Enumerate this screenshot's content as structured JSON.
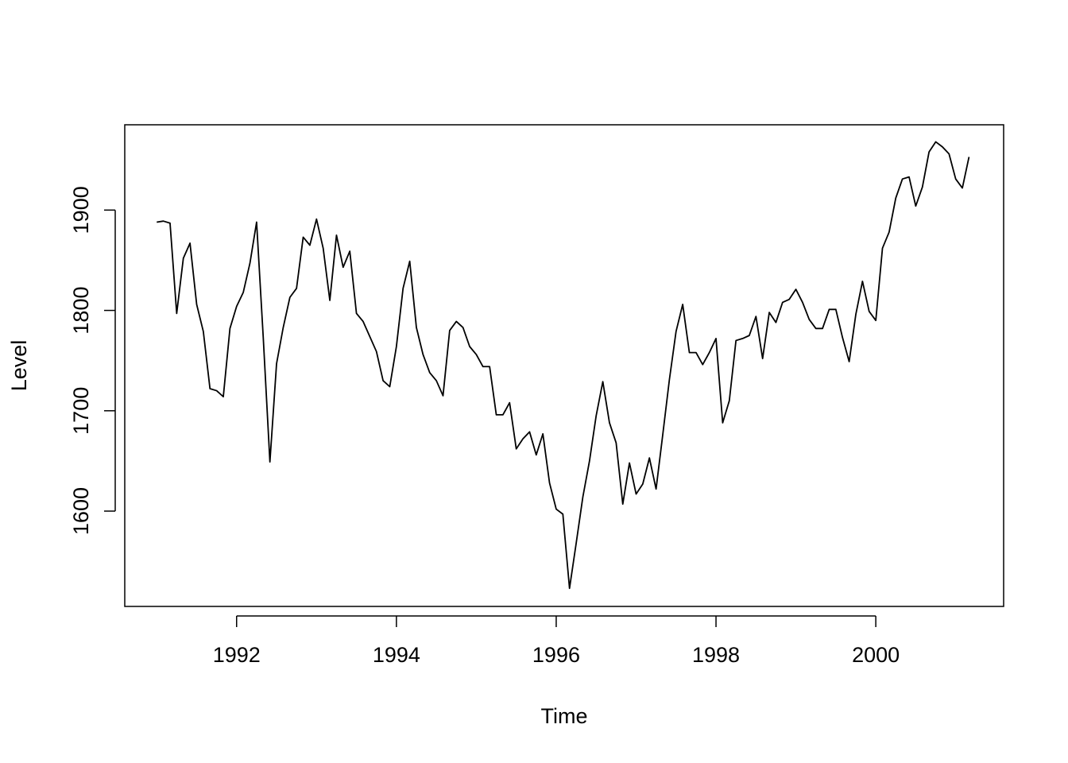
{
  "chart_data": {
    "type": "line",
    "title": "",
    "xlabel": "Time",
    "ylabel": "Level",
    "xlim": [
      1990.6,
      2001.6
    ],
    "ylim": [
      1505,
      1985
    ],
    "grid": false,
    "x_ticks": [
      1992,
      1994,
      1996,
      1998,
      2000
    ],
    "x_tick_labels": [
      "1992",
      "1994",
      "1996",
      "1998",
      "2000"
    ],
    "y_ticks": [
      1600,
      1700,
      1800,
      1900
    ],
    "y_tick_labels": [
      "1600",
      "1700",
      "1800",
      "1900"
    ],
    "series": [
      {
        "start": 1991.0,
        "frequency": 12,
        "values": [
          1888,
          1889,
          1887,
          1797,
          1852,
          1867,
          1806,
          1779,
          1722,
          1720,
          1714,
          1782,
          1804,
          1818,
          1847,
          1888,
          1773,
          1649,
          1747,
          1783,
          1813,
          1822,
          1873,
          1865,
          1891,
          1862,
          1810,
          1875,
          1843,
          1859,
          1797,
          1789,
          1774,
          1759,
          1730,
          1724,
          1764,
          1822,
          1849,
          1783,
          1756,
          1738,
          1730,
          1715,
          1780,
          1789,
          1783,
          1764,
          1756,
          1744,
          1744,
          1696,
          1696,
          1708,
          1662,
          1672,
          1679,
          1656,
          1677,
          1628,
          1602,
          1597,
          1523,
          1568,
          1614,
          1650,
          1695,
          1729,
          1688,
          1668,
          1607,
          1648,
          1617,
          1627,
          1653,
          1622,
          1676,
          1731,
          1779,
          1806,
          1758,
          1758,
          1746,
          1758,
          1772,
          1688,
          1710,
          1770,
          1772,
          1775,
          1794,
          1752,
          1798,
          1788,
          1808,
          1811,
          1821,
          1808,
          1791,
          1782,
          1782,
          1801,
          1801,
          1773,
          1749,
          1796,
          1829,
          1799,
          1790,
          1862,
          1878,
          1912,
          1931,
          1933,
          1904,
          1923,
          1958,
          1968,
          1963,
          1956,
          1931,
          1922,
          1953
        ]
      }
    ]
  }
}
